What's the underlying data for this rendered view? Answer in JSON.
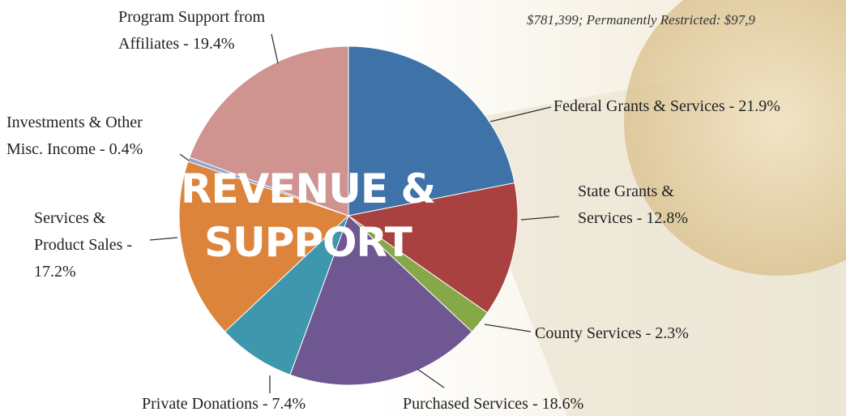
{
  "chart_data": {
    "type": "pie",
    "title": "REVENUE &\nSUPPORT",
    "note": "$781,399; Permanently Restricted: $97,9",
    "values": [
      21.9,
      12.8,
      2.3,
      18.6,
      7.4,
      17.2,
      0.4,
      19.4
    ],
    "value_labels": [
      "Federal Grants & Services - 21.9%",
      "State Grants &\nServices - 12.8%",
      "County Services - 2.3%",
      "Purchased Services - 18.6%",
      "Private Donations - 7.4%",
      "Services &\nProduct Sales -\n17.2%",
      "Investments & Other\nMisc. Income - 0.4%",
      "Program Support from\nAffiliates - 19.4%"
    ],
    "colors": [
      "#3f72a8",
      "#a8413f",
      "#86a847",
      "#6f5891",
      "#3e97ad",
      "#dc843b",
      "#8fa7d0",
      "#cf9390"
    ]
  }
}
